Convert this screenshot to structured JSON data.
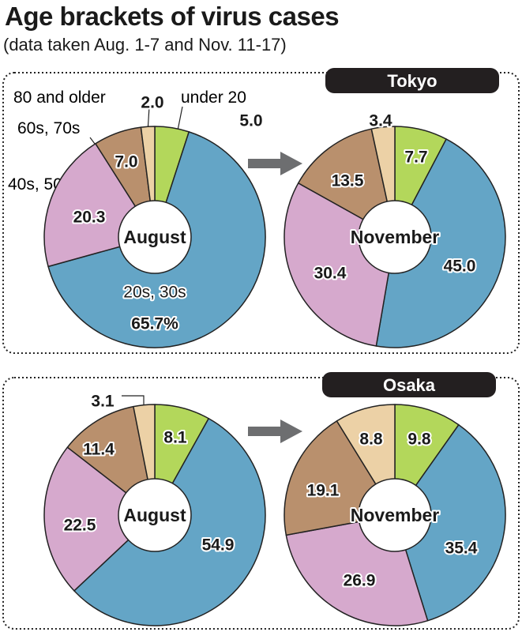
{
  "header": {
    "title": "Age brackets of virus cases",
    "subtitle": "(data taken Aug. 1-7 and Nov. 11-17)"
  },
  "colors": {
    "under_20": "#b3d75b",
    "20s_30s": "#64a5c6",
    "40s_50s": "#d6a9cd",
    "60s_70s": "#b9906d",
    "80_older": "#ecd1a6"
  },
  "category_labels": {
    "under_20": "under 20",
    "20s_30s": "20s, 30s",
    "40s_50s": "40s, 50s",
    "60s_70s": "60s, 70s",
    "80_older": "80 and older"
  },
  "chart_data": [
    {
      "type": "pie",
      "region": "Tokyo",
      "center_label": "August",
      "categories": [
        "under 20",
        "20s, 30s",
        "40s, 50s",
        "60s, 70s",
        "80 and older"
      ],
      "values": [
        5.0,
        65.7,
        20.3,
        7.0,
        2.0
      ],
      "value_labels": [
        "5.0",
        "65.7%",
        "20.3",
        "7.0",
        "2.0"
      ]
    },
    {
      "type": "pie",
      "region": "Tokyo",
      "center_label": "November",
      "categories": [
        "under 20",
        "20s, 30s",
        "40s, 50s",
        "60s, 70s",
        "80 and older"
      ],
      "values": [
        7.7,
        45.0,
        30.4,
        13.5,
        3.4
      ],
      "value_labels": [
        "7.7",
        "45.0",
        "30.4",
        "13.5",
        "3.4"
      ]
    },
    {
      "type": "pie",
      "region": "Osaka",
      "center_label": "August",
      "categories": [
        "under 20",
        "20s, 30s",
        "40s, 50s",
        "60s, 70s",
        "80 and older"
      ],
      "values": [
        8.1,
        54.9,
        22.5,
        11.4,
        3.1
      ],
      "value_labels": [
        "8.1",
        "54.9",
        "22.5",
        "11.4",
        "3.1"
      ]
    },
    {
      "type": "pie",
      "region": "Osaka",
      "center_label": "November",
      "categories": [
        "under 20",
        "20s, 30s",
        "40s, 50s",
        "60s, 70s",
        "80 and older"
      ],
      "values": [
        9.8,
        35.4,
        26.9,
        19.1,
        8.8
      ],
      "value_labels": [
        "9.8",
        "35.4",
        "26.9",
        "19.1",
        "8.8"
      ]
    }
  ]
}
